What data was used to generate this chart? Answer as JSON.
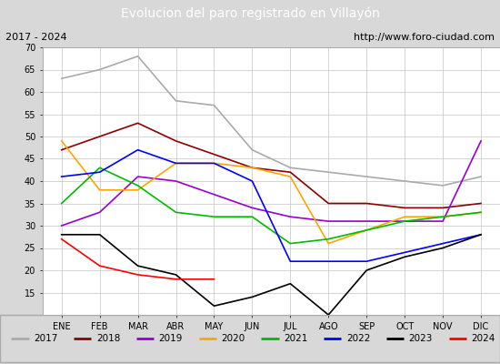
{
  "title": "Evolucion del paro registrado en Villayón",
  "subtitle_left": "2017 - 2024",
  "subtitle_right": "http://www.foro-ciudad.com",
  "months": [
    "ENE",
    "FEB",
    "MAR",
    "ABR",
    "MAY",
    "JUN",
    "JUL",
    "AGO",
    "SEP",
    "OCT",
    "NOV",
    "DIC"
  ],
  "ylim": [
    10,
    70
  ],
  "yticks": [
    15,
    20,
    25,
    30,
    35,
    40,
    45,
    50,
    55,
    60,
    65,
    70
  ],
  "series": {
    "2017": {
      "color": "#aaaaaa",
      "data": [
        63,
        65,
        68,
        58,
        57,
        47,
        43,
        42,
        41,
        40,
        39,
        41
      ]
    },
    "2018": {
      "color": "#8b0000",
      "data": [
        47,
        50,
        53,
        49,
        46,
        43,
        42,
        35,
        35,
        34,
        34,
        35
      ]
    },
    "2019": {
      "color": "#9900cc",
      "data": [
        30,
        33,
        41,
        40,
        37,
        34,
        32,
        31,
        31,
        31,
        31,
        49
      ]
    },
    "2020": {
      "color": "#ffa500",
      "data": [
        49,
        38,
        38,
        44,
        44,
        43,
        41,
        26,
        29,
        32,
        32,
        33
      ]
    },
    "2021": {
      "color": "#00bb00",
      "data": [
        35,
        43,
        39,
        33,
        32,
        32,
        26,
        27,
        29,
        31,
        32,
        33
      ]
    },
    "2022": {
      "color": "#0000ff",
      "data": [
        41,
        42,
        47,
        44,
        44,
        40,
        22,
        22,
        22,
        24,
        26,
        28
      ]
    },
    "2023": {
      "color": "#000000",
      "data": [
        28,
        28,
        21,
        19,
        12,
        14,
        17,
        10,
        20,
        23,
        25,
        28
      ]
    },
    "2024": {
      "color": "#ff0000",
      "data": [
        27,
        21,
        19,
        18,
        18,
        null,
        null,
        null,
        null,
        null,
        null,
        null
      ]
    }
  },
  "title_bg_color": "#5b9bd5",
  "title_color": "#ffffff",
  "plot_bg_color": "#ffffff",
  "outer_bg_color": "#d8d8d8",
  "grid_color": "#cccccc",
  "border_color": "#aaaaaa"
}
